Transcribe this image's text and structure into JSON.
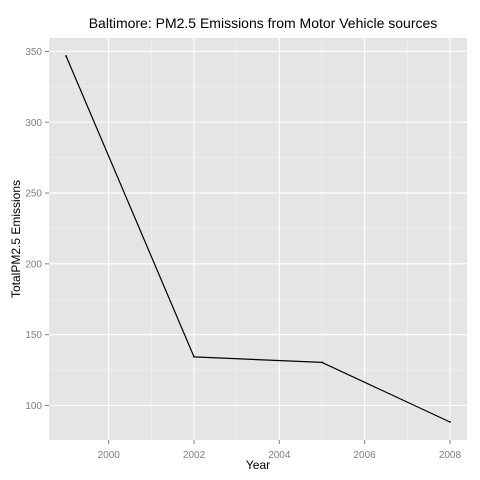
{
  "chart_data": {
    "type": "line",
    "title": "Baltimore: PM2.5 Emissions from Motor Vehicle sources",
    "xlabel": "Year",
    "ylabel": "TotalPM2.5 Emissions",
    "x": [
      1999,
      2002,
      2005,
      2008
    ],
    "series": [
      {
        "values": [
          346.8,
          134.3,
          130.4,
          88.3
        ]
      }
    ],
    "xlim": [
      1998.6,
      2008.4
    ],
    "ylim": [
      75.6,
      359.5
    ],
    "xticks": [
      2000,
      2002,
      2004,
      2006,
      2008
    ],
    "yticks": [
      100,
      150,
      200,
      250,
      300,
      350
    ],
    "grid": true,
    "legend": "none",
    "colors": {
      "panel_background": "#e5e5e5",
      "major_grid": "#ffffff",
      "minor_grid": "#f2f2f2",
      "line": "#000000",
      "tick_label": "#7f7f7f",
      "text": "#000000"
    }
  }
}
